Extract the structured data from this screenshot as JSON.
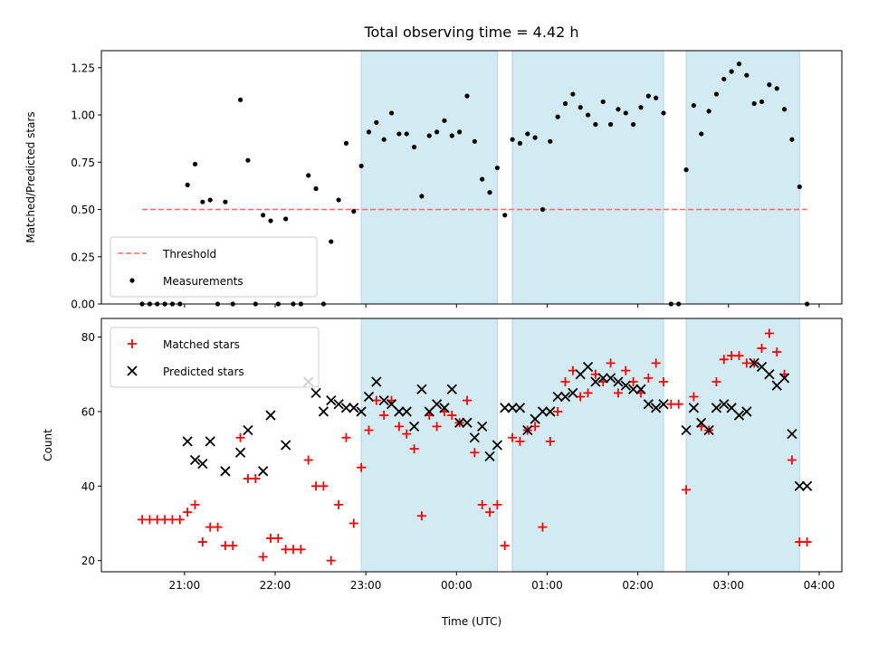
{
  "chart_data": {
    "title": "Total observing time = 4.42 h",
    "xlabel": "Time (UTC)",
    "x_ticks": [
      "21:00",
      "22:00",
      "23:00",
      "00:00",
      "01:00",
      "02:00",
      "03:00",
      "04:00"
    ],
    "x_range": [
      "20:05",
      "04:15"
    ],
    "shaded_intervals": [
      [
        "22:57",
        "00:27"
      ],
      [
        "00:37",
        "02:17"
      ],
      [
        "02:32",
        "03:47"
      ]
    ],
    "shade_color": "#add8e6",
    "panels": [
      {
        "type": "scatter",
        "ylabel": "Matched/Predicted stars",
        "ylim": [
          0,
          1.34
        ],
        "y_ticks": [
          "0.00",
          "0.25",
          "0.50",
          "0.75",
          "1.00",
          "1.25"
        ],
        "y_tick_values": [
          0,
          0.25,
          0.5,
          0.75,
          1.0,
          1.25
        ],
        "legend": {
          "placement": "lower-left",
          "entries": [
            "Threshold",
            "Measurements"
          ]
        },
        "series": [
          {
            "name": "Threshold",
            "kind": "dashed-line",
            "color": "#ff6b6b",
            "x": [
              "20:32",
              "03:52"
            ],
            "y": [
              0.5,
              0.5
            ]
          },
          {
            "name": "Measurements",
            "kind": "dots",
            "color": "#000000",
            "x": [
              "20:32",
              "20:37",
              "20:42",
              "20:47",
              "20:52",
              "20:57",
              "21:02",
              "21:07",
              "21:12",
              "21:17",
              "21:22",
              "21:27",
              "21:32",
              "21:37",
              "21:42",
              "21:47",
              "21:52",
              "21:57",
              "22:02",
              "22:07",
              "22:12",
              "22:17",
              "22:22",
              "22:27",
              "22:32",
              "22:37",
              "22:42",
              "22:47",
              "22:52",
              "22:57",
              "23:02",
              "23:07",
              "23:12",
              "23:17",
              "23:22",
              "23:27",
              "23:32",
              "23:37",
              "23:42",
              "23:47",
              "23:52",
              "23:57",
              "00:02",
              "00:07",
              "00:12",
              "00:17",
              "00:22",
              "00:27",
              "00:32",
              "00:37",
              "00:42",
              "00:47",
              "00:52",
              "00:57",
              "01:02",
              "01:07",
              "01:12",
              "01:17",
              "01:22",
              "01:27",
              "01:32",
              "01:37",
              "01:42",
              "01:47",
              "01:52",
              "01:57",
              "02:02",
              "02:07",
              "02:12",
              "02:17",
              "02:22",
              "02:27",
              "02:32",
              "02:37",
              "02:42",
              "02:47",
              "02:52",
              "02:57",
              "03:02",
              "03:07",
              "03:12",
              "03:17",
              "03:22",
              "03:27",
              "03:32",
              "03:37",
              "03:42",
              "03:47",
              "03:52"
            ],
            "y": [
              0,
              0,
              0,
              0,
              0,
              0,
              0.63,
              0.74,
              0.54,
              0.55,
              0,
              0.54,
              0,
              1.08,
              0.76,
              0,
              0.47,
              0.44,
              0,
              0.45,
              0,
              0,
              0.68,
              0.61,
              0,
              0.33,
              0.55,
              0.85,
              0.49,
              0.73,
              0.91,
              0.96,
              0.87,
              1.01,
              0.9,
              0.9,
              0.83,
              0.57,
              0.89,
              0.91,
              0.97,
              0.89,
              0.91,
              1.1,
              0.86,
              0.66,
              0.59,
              0.72,
              0.47,
              0.87,
              0.85,
              0.9,
              0.88,
              0.5,
              0.86,
              0.99,
              1.06,
              1.11,
              1.04,
              1.0,
              0.95,
              1.07,
              0.95,
              1.03,
              1.01,
              0.95,
              1.04,
              1.1,
              1.09,
              1.01,
              0,
              0,
              0.71,
              1.05,
              0.9,
              1.02,
              1.11,
              1.19,
              1.23,
              1.27,
              1.21,
              1.06,
              1.07,
              1.16,
              1.14,
              1.03,
              0.87,
              0.62,
              0
            ]
          }
        ]
      },
      {
        "type": "scatter",
        "ylabel": "Count",
        "ylim": [
          17,
          85
        ],
        "y_ticks": [
          "20",
          "40",
          "60",
          "80"
        ],
        "y_tick_values": [
          20,
          40,
          60,
          80
        ],
        "legend": {
          "placement": "upper-left",
          "entries": [
            "Matched stars",
            "Predicted stars"
          ]
        },
        "series": [
          {
            "name": "Matched stars",
            "kind": "plus",
            "color": "#ff0000",
            "x": [
              "20:32",
              "20:37",
              "20:42",
              "20:47",
              "20:52",
              "20:57",
              "21:02",
              "21:07",
              "21:12",
              "21:17",
              "21:22",
              "21:27",
              "21:32",
              "21:37",
              "21:42",
              "21:47",
              "21:52",
              "21:57",
              "22:02",
              "22:07",
              "22:12",
              "22:17",
              "22:22",
              "22:27",
              "22:32",
              "22:37",
              "22:42",
              "22:47",
              "22:52",
              "22:57",
              "23:02",
              "23:07",
              "23:12",
              "23:17",
              "23:22",
              "23:27",
              "23:32",
              "23:37",
              "23:42",
              "23:47",
              "23:52",
              "23:57",
              "00:02",
              "00:07",
              "00:12",
              "00:17",
              "00:22",
              "00:27",
              "00:32",
              "00:37",
              "00:42",
              "00:47",
              "00:52",
              "00:57",
              "01:02",
              "01:07",
              "01:12",
              "01:17",
              "01:22",
              "01:27",
              "01:32",
              "01:37",
              "01:42",
              "01:47",
              "01:52",
              "01:57",
              "02:02",
              "02:07",
              "02:12",
              "02:17",
              "02:22",
              "02:27",
              "02:32",
              "02:37",
              "02:42",
              "02:47",
              "02:52",
              "02:57",
              "03:02",
              "03:07",
              "03:12",
              "03:17",
              "03:22",
              "03:27",
              "03:32",
              "03:37",
              "03:42",
              "03:47",
              "03:52"
            ],
            "y": [
              31,
              31,
              31,
              31,
              31,
              31,
              33,
              35,
              25,
              29,
              29,
              24,
              24,
              53,
              42,
              42,
              21,
              26,
              26,
              23,
              23,
              23,
              47,
              40,
              40,
              20,
              35,
              53,
              30,
              45,
              55,
              63,
              59,
              63,
              56,
              54,
              50,
              32,
              59,
              56,
              60,
              59,
              57,
              63,
              49,
              35,
              33,
              35,
              24,
              53,
              52,
              55,
              56,
              29,
              52,
              60,
              68,
              71,
              64,
              65,
              70,
              68,
              73,
              65,
              71,
              68,
              65,
              69,
              73,
              68,
              62,
              62,
              39,
              64,
              56,
              55,
              68,
              74,
              75,
              75,
              73,
              73,
              77,
              81,
              76,
              70,
              47,
              25,
              25
            ]
          },
          {
            "name": "Predicted stars",
            "kind": "cross",
            "color": "#000000",
            "x": [
              "21:02",
              "21:07",
              "21:12",
              "21:17",
              "21:27",
              "21:37",
              "21:42",
              "21:52",
              "21:57",
              "22:07",
              "22:22",
              "22:27",
              "22:32",
              "22:37",
              "22:42",
              "22:47",
              "22:52",
              "22:57",
              "23:02",
              "23:07",
              "23:12",
              "23:17",
              "23:22",
              "23:27",
              "23:32",
              "23:37",
              "23:42",
              "23:47",
              "23:52",
              "23:57",
              "00:02",
              "00:07",
              "00:12",
              "00:17",
              "00:22",
              "00:27",
              "00:32",
              "00:37",
              "00:42",
              "00:47",
              "00:52",
              "00:57",
              "01:02",
              "01:07",
              "01:12",
              "01:17",
              "01:22",
              "01:27",
              "01:32",
              "01:37",
              "01:42",
              "01:47",
              "01:52",
              "01:57",
              "02:02",
              "02:07",
              "02:12",
              "02:17",
              "02:32",
              "02:37",
              "02:42",
              "02:47",
              "02:52",
              "02:57",
              "03:02",
              "03:07",
              "03:12",
              "03:17",
              "03:22",
              "03:27",
              "03:32",
              "03:37",
              "03:42",
              "03:47",
              "03:52"
            ],
            "y": [
              52,
              47,
              46,
              52,
              44,
              49,
              55,
              44,
              59,
              51,
              68,
              65,
              60,
              63,
              62,
              61,
              61,
              60,
              64,
              68,
              63,
              62,
              60,
              60,
              56,
              66,
              60,
              62,
              61,
              66,
              57,
              57,
              53,
              56,
              48,
              51,
              61,
              61,
              61,
              55,
              58,
              60,
              60,
              64,
              64,
              65,
              70,
              72,
              68,
              69,
              69,
              68,
              67,
              66,
              66,
              62,
              61,
              62,
              55,
              61,
              57,
              55,
              61,
              62,
              61,
              59,
              60,
              73,
              72,
              70,
              67,
              69,
              54,
              40,
              40
            ]
          }
        ]
      }
    ]
  }
}
